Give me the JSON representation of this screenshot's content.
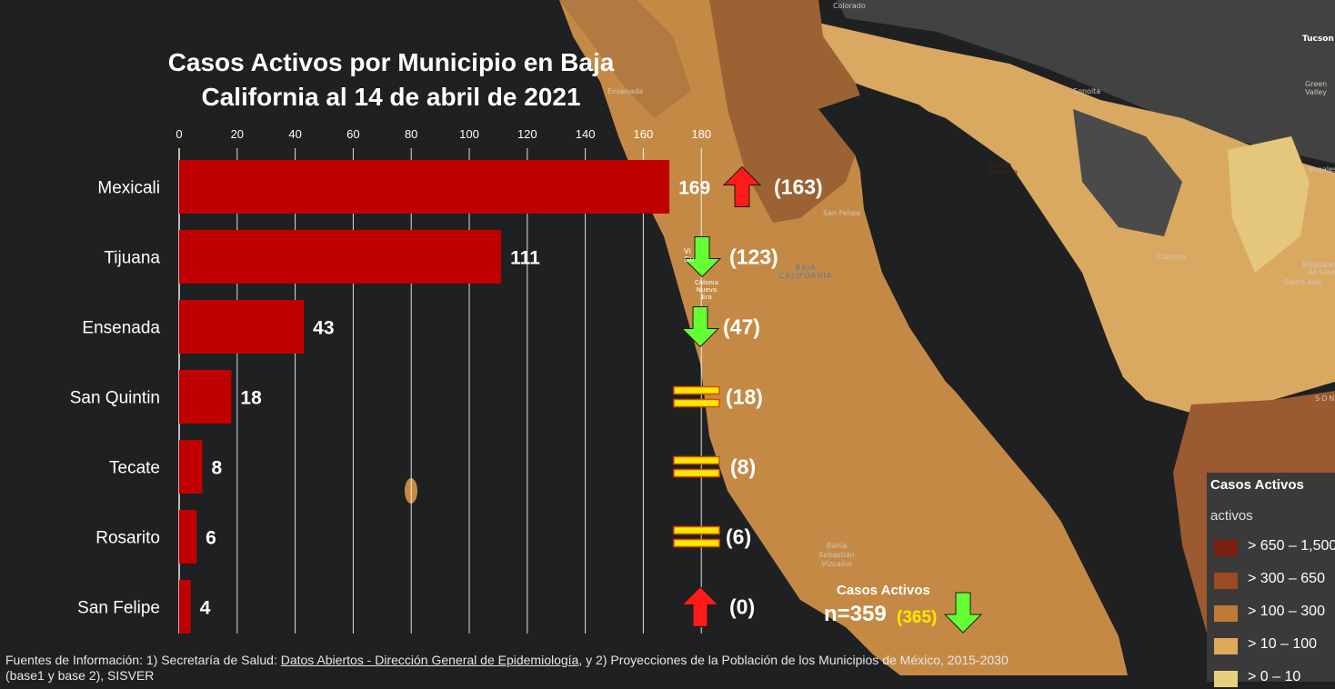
{
  "colors": {
    "background": "#1e2022",
    "bar": "#c00000",
    "arrow_up": "#ff1a1a",
    "arrow_down": "#66ff33",
    "equal": "#ffe800",
    "previous_total": "#ffe800",
    "map_land_light": "#d9a861",
    "map_land_mid": "#c48a45",
    "map_land_dark": "#9b6234",
    "map_pale": "#e4c77a",
    "map_gray": "#424242"
  },
  "chart_data": {
    "type": "bar",
    "orientation": "horizontal",
    "title": "Casos Activos por Municipio en Baja California al 14 de abril de 2021",
    "categories": [
      "Mexicali",
      "Tijuana",
      "Ensenada",
      "San Quintin",
      "Tecate",
      "Rosarito",
      "San Felipe"
    ],
    "values": [
      169,
      111,
      43,
      18,
      8,
      6,
      4
    ],
    "previous_values": [
      "(163)",
      "(123)",
      "(47)",
      "(18)",
      "(8)",
      "(6)",
      "(0)"
    ],
    "trend": [
      "up",
      "down",
      "down",
      "equal",
      "equal",
      "equal",
      "up"
    ],
    "xlim": [
      0,
      180
    ],
    "x_ticks": [
      0,
      20,
      40,
      60,
      80,
      100,
      120,
      140,
      160,
      180
    ],
    "grid": true,
    "xlabel": "",
    "ylabel": ""
  },
  "summary": {
    "title": "Casos Activos",
    "total": "n=359",
    "previous": "(365)",
    "trend": "down"
  },
  "legend": {
    "title": "Casos Activos",
    "subtitle": "activos",
    "items": [
      {
        "label": "> 650 – 1,500",
        "color": "#7a1f12"
      },
      {
        "label": "> 300 – 650",
        "color": "#9b4a22"
      },
      {
        "label": "> 100 – 300",
        "color": "#c07a35"
      },
      {
        "label": "> 10 – 100",
        "color": "#deaa5a"
      },
      {
        "label": "> 0 – 10",
        "color": "#e8cf7e"
      }
    ]
  },
  "map_labels": {
    "colorado": "Colorado",
    "tucson": "Tucson",
    "green_valley": "Green Valley",
    "ensenada": "Ensenada",
    "sonoita": "Sonoita",
    "puerto_penasco": "Puerto Peñasco",
    "nogales": "Nogales",
    "san_felipe": "San Felipe",
    "baja_california": "BAJA CALIFORNIA",
    "colonia_nueva_era": "Colonia Nueva Era",
    "vicente_guerrero": "Vi Gu",
    "caborca": "Caborca",
    "magdalena": "Magdalena de Kino",
    "santa_ana": "Santa Ana",
    "sonora": "SON",
    "bahia": "Bahía Sebastián Vizcaíno"
  },
  "footer": {
    "prefix": "Fuentes de Información: 1) Secretaría de Salud: ",
    "link": "Datos Abiertos - Dirección General de Epidemiología",
    "suffix": ", y 2) Proyecciones de la Población de los Municipios de México, 2015-2030",
    "line2": "(base1 y base 2), SISVER"
  }
}
